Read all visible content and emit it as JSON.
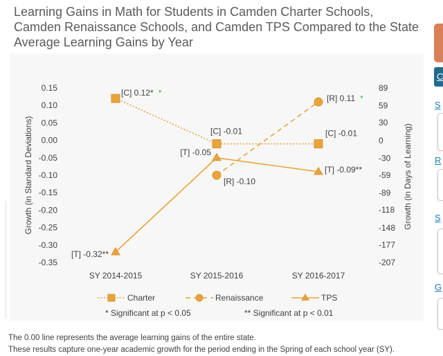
{
  "chart_data": {
    "type": "line",
    "title": [
      "Learning Gains in Math for Students in Camden Charter Schools,",
      "Camden Renaissance Schools, and Camden TPS Compared to the State",
      "Average Learning Gains by Year"
    ],
    "categories": [
      "SY 2014-2015",
      "SY 2015-2016",
      "SY 2016-2017"
    ],
    "ylabel": "Growth (in Standard Deviations)",
    "ylim": [
      -0.35,
      0.15
    ],
    "yticks": [
      "0.15",
      "0.10",
      "0.05",
      "0.00",
      "-0.05",
      "-0.10",
      "-0.15",
      "-0.20",
      "-0.25",
      "-0.30",
      "-0.35"
    ],
    "y2label": "Growth (in Days of Learning)",
    "y2lim": [
      -207,
      89
    ],
    "y2ticks": [
      "89",
      "59",
      "30",
      "0",
      "-30",
      "-59",
      "-89",
      "-118",
      "-148",
      "-177",
      "-207"
    ],
    "grid": false,
    "legend": "bottom",
    "series": [
      {
        "name": "Charter",
        "line_style": "dotted",
        "marker": "square",
        "values": [
          0.12,
          -0.01,
          -0.01
        ],
        "labels": [
          "[C] 0.12*",
          "[C] -0.01",
          "[C] -0.01"
        ],
        "label_marks": [
          "*",
          null,
          null
        ]
      },
      {
        "name": "Renaissance",
        "line_style": "dashed",
        "marker": "circle",
        "values": [
          null,
          -0.1,
          0.11
        ],
        "labels": [
          null,
          "[R] -0.10",
          "[R] 0.11"
        ],
        "label_marks": [
          null,
          null,
          "*"
        ]
      },
      {
        "name": "TPS",
        "line_style": "solid",
        "marker": "triangle",
        "values": [
          -0.32,
          -0.05,
          -0.09
        ],
        "labels": [
          "[T] -0.32**",
          "[T] -0.05",
          "[T] -0.09**"
        ],
        "label_marks": [
          null,
          null,
          null
        ]
      }
    ],
    "footnotes": [
      "* Significant at p < 0.05",
      "** Significant at p < 0.01"
    ],
    "colors": {
      "series": "#e8a33b",
      "marker_edge": "#d9962f",
      "significance_mark": "#2eb34f",
      "text": "#404040"
    }
  },
  "notes": [
    "The 0.00 line represents the average learning gains of the entire state.",
    "These results capture one-year academic growth for the period ending in the Spring of each school year (SY)."
  ],
  "sidebar": {
    "items": [
      {
        "label": "C"
      },
      {
        "label": "S"
      },
      {
        "label": "R"
      },
      {
        "label": "S"
      },
      {
        "label": "G"
      }
    ],
    "colors": {
      "tab": "#d98057",
      "button": "#236a8c",
      "link": "#1b7bc0"
    }
  }
}
